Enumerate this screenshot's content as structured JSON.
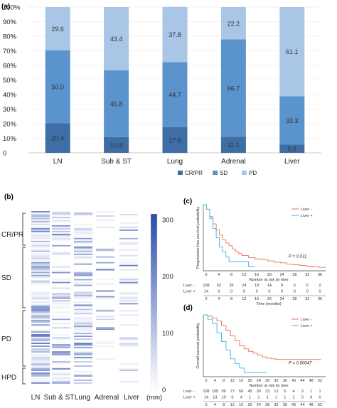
{
  "panel_labels": {
    "a": "(a)",
    "b": "(b)",
    "c": "(c)",
    "d": "(d)"
  },
  "colors": {
    "crpr": "#3f6da6",
    "sd": "#5b93cc",
    "pd": "#a9c6e6",
    "km_neg": "#e8705a",
    "km_pos": "#3bb3e0",
    "heat_max": "#2a4bab",
    "heat_min": "#ffffff"
  },
  "chart_data": [
    {
      "type": "bar",
      "stacked": true,
      "categories": [
        "LN",
        "Sub & ST",
        "Lung",
        "Adrenal",
        "Liver"
      ],
      "series": [
        {
          "name": "CR/PR",
          "values": [
            20.4,
            10.8,
            17.6,
            11.1,
            5.6
          ],
          "labels": [
            "20.4",
            "10.8",
            "17.6",
            "11.1",
            "5.6"
          ]
        },
        {
          "name": "SD",
          "values": [
            50.0,
            45.8,
            44.7,
            66.7,
            33.3
          ],
          "labels": [
            "50.0",
            "45.8",
            "44.7",
            "66.7",
            "33.3"
          ]
        },
        {
          "name": "PD",
          "values": [
            29.6,
            43.4,
            37.8,
            22.2,
            61.1
          ],
          "labels": [
            "29.6",
            "43.4",
            "37.8",
            "22.2",
            "61.1"
          ]
        }
      ],
      "ylim": [
        0,
        100
      ],
      "yticks": [
        "0",
        "10%",
        "20%",
        "30%",
        "40%",
        "50%",
        "60%",
        "70%",
        "80%",
        "90%",
        "100%"
      ],
      "legend": "bottom"
    },
    {
      "type": "heatmap",
      "columns": [
        "LN",
        "Sub & ST",
        "Lung",
        "Adrenal",
        "Liver"
      ],
      "row_groups": [
        "CR/PR",
        "SD",
        "PD",
        "HPD"
      ],
      "colorbar": {
        "ticks": [
          "0",
          "100",
          "200",
          "300"
        ],
        "unit": "(mm)",
        "min": 0,
        "max": 310
      }
    },
    {
      "type": "line",
      "ylabel": "Progression-free survival probability",
      "xlabel": "Number at risk by time",
      "series": [
        {
          "name": "Liver -",
          "x": [
            0,
            1,
            2,
            3,
            4,
            5,
            6,
            7,
            8,
            9,
            10,
            11,
            12,
            14,
            16,
            18,
            20,
            22,
            24,
            26,
            28,
            30,
            32,
            34,
            36,
            38
          ],
          "y": [
            1.0,
            0.93,
            0.82,
            0.71,
            0.62,
            0.54,
            0.47,
            0.42,
            0.38,
            0.33,
            0.29,
            0.26,
            0.23,
            0.2,
            0.18,
            0.17,
            0.15,
            0.13,
            0.12,
            0.1,
            0.09,
            0.08,
            0.07,
            0.06,
            0.05,
            0.05
          ]
        },
        {
          "name": "Liver +",
          "x": [
            0,
            1,
            2,
            3,
            4,
            5,
            6,
            7,
            8,
            10,
            12,
            14,
            16
          ],
          "y": [
            1.0,
            0.93,
            0.79,
            0.64,
            0.5,
            0.36,
            0.29,
            0.21,
            0.14,
            0.14,
            0.14,
            0.07,
            0.07
          ]
        }
      ],
      "annotation": "P = 0.011",
      "xticks": [
        "0",
        "4",
        "8",
        "12",
        "16",
        "20",
        "24",
        "28",
        "32",
        "36"
      ],
      "risk_table": {
        "title": "Number at risk by time",
        "rows": [
          {
            "label": "Liver -",
            "values": [
              "108",
              "53",
              "35",
              "24",
              "18",
              "14",
              "9",
              "6",
              "5",
              "2"
            ]
          },
          {
            "label": "Liver +",
            "values": [
              "14",
              "3",
              "0",
              "0",
              "0",
              "0",
              "0",
              "0",
              "0",
              "0"
            ]
          }
        ],
        "xlabel": "Time (months)"
      }
    },
    {
      "type": "line",
      "ylabel": "Overall survival probability",
      "xlabel": "Number at risk by time",
      "series": [
        {
          "name": "Liver -",
          "x": [
            0,
            2,
            4,
            6,
            8,
            10,
            12,
            14,
            16,
            18,
            20,
            22,
            24,
            26,
            28,
            30,
            32,
            36,
            40,
            44,
            48,
            52
          ],
          "y": [
            1.0,
            0.98,
            0.95,
            0.9,
            0.83,
            0.75,
            0.66,
            0.58,
            0.5,
            0.45,
            0.41,
            0.38,
            0.35,
            0.32,
            0.3,
            0.29,
            0.28,
            0.28,
            0.28,
            0.28,
            0.28,
            0.28
          ]
        },
        {
          "name": "Liver +",
          "x": [
            0,
            2,
            4,
            6,
            8,
            10,
            12,
            14,
            16,
            18,
            20,
            24,
            28
          ],
          "y": [
            1.0,
            0.93,
            0.86,
            0.71,
            0.57,
            0.43,
            0.29,
            0.21,
            0.14,
            0.07,
            0.07,
            0.07,
            0.07
          ]
        }
      ],
      "annotation": "P = 0.00047",
      "xticks": [
        "0",
        "4",
        "8",
        "12",
        "16",
        "20",
        "24",
        "28",
        "32",
        "36",
        "40",
        "44",
        "48",
        "52"
      ],
      "risk_table": {
        "title": "Number at risk by time",
        "rows": [
          {
            "label": "Liver -",
            "values": [
              "108",
              "105",
              "99",
              "77",
              "58",
              "45",
              "30",
              "23",
              "12",
              "5",
              "4",
              "2",
              "1",
              "1"
            ]
          },
          {
            "label": "Liver +",
            "values": [
              "14",
              "13",
              "10",
              "6",
              "4",
              "1",
              "1",
              "1",
              "1",
              "1",
              "1",
              "0",
              "0",
              "0"
            ]
          }
        ],
        "xlabel": "Time (months)"
      }
    }
  ]
}
